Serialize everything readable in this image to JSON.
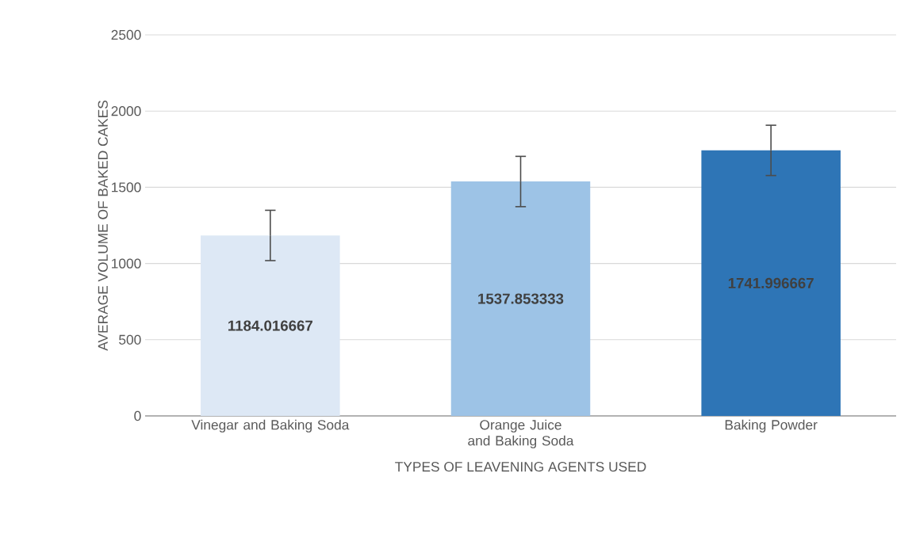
{
  "chart_data": {
    "type": "bar",
    "xlabel": "TYPES OF LEAVENING AGENTS USED",
    "ylabel": "AVERAGE VOLUME OF BAKED CAKES",
    "categories": [
      "Vinegar and Baking Soda",
      "Orange Juice and Baking Soda",
      "Baking Powder"
    ],
    "values": [
      1184.016667,
      1537.853333,
      1741.996667
    ],
    "colors": [
      "#dde8f5",
      "#9dc3e6",
      "#2e75b6"
    ],
    "errors": [
      165,
      165,
      165
    ],
    "ylim": [
      0,
      2500
    ],
    "yticks": [
      0,
      500,
      1000,
      1500,
      2000,
      2500
    ],
    "grid": "y",
    "data_labels": true
  }
}
